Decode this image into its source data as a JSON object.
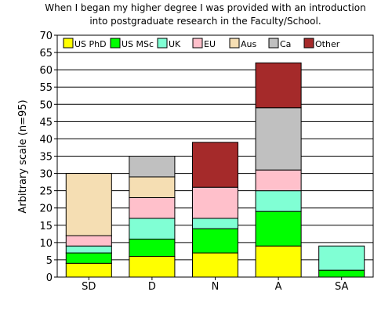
{
  "chart_data": {
    "type": "bar",
    "stacked": true,
    "title_line1": "When I began my higher degree I was provided with an introduction",
    "title_line2": "into postgraduate research in the Faculty/School.",
    "xlabel": "",
    "ylabel": "Arbitrary scale (n=95)",
    "ylim": [
      0,
      70
    ],
    "yticks": [
      0,
      5,
      10,
      15,
      20,
      25,
      30,
      35,
      40,
      45,
      50,
      55,
      60,
      65,
      70
    ],
    "grid": true,
    "legend_position": "top",
    "categories": [
      "SD",
      "D",
      "N",
      "A",
      "SA"
    ],
    "series": [
      {
        "name": "US PhD",
        "color": "#ffff00",
        "values": [
          4,
          6,
          7,
          9,
          0
        ]
      },
      {
        "name": "US MSc",
        "color": "#00ff00",
        "values": [
          3,
          5,
          7,
          10,
          2
        ]
      },
      {
        "name": "UK",
        "color": "#80ffd4",
        "values": [
          2,
          6,
          3,
          6,
          7
        ]
      },
      {
        "name": "EU",
        "color": "#ffc0cb",
        "values": [
          3,
          6,
          9,
          6,
          0
        ]
      },
      {
        "name": "Aus",
        "color": "#f5deb3",
        "values": [
          18,
          6,
          0,
          0,
          0
        ]
      },
      {
        "name": "Ca",
        "color": "#c0c0c0",
        "values": [
          0,
          6,
          0,
          18,
          0
        ]
      },
      {
        "name": "Other",
        "color": "#a52a2a",
        "values": [
          0,
          0,
          13,
          13,
          0
        ]
      }
    ]
  }
}
